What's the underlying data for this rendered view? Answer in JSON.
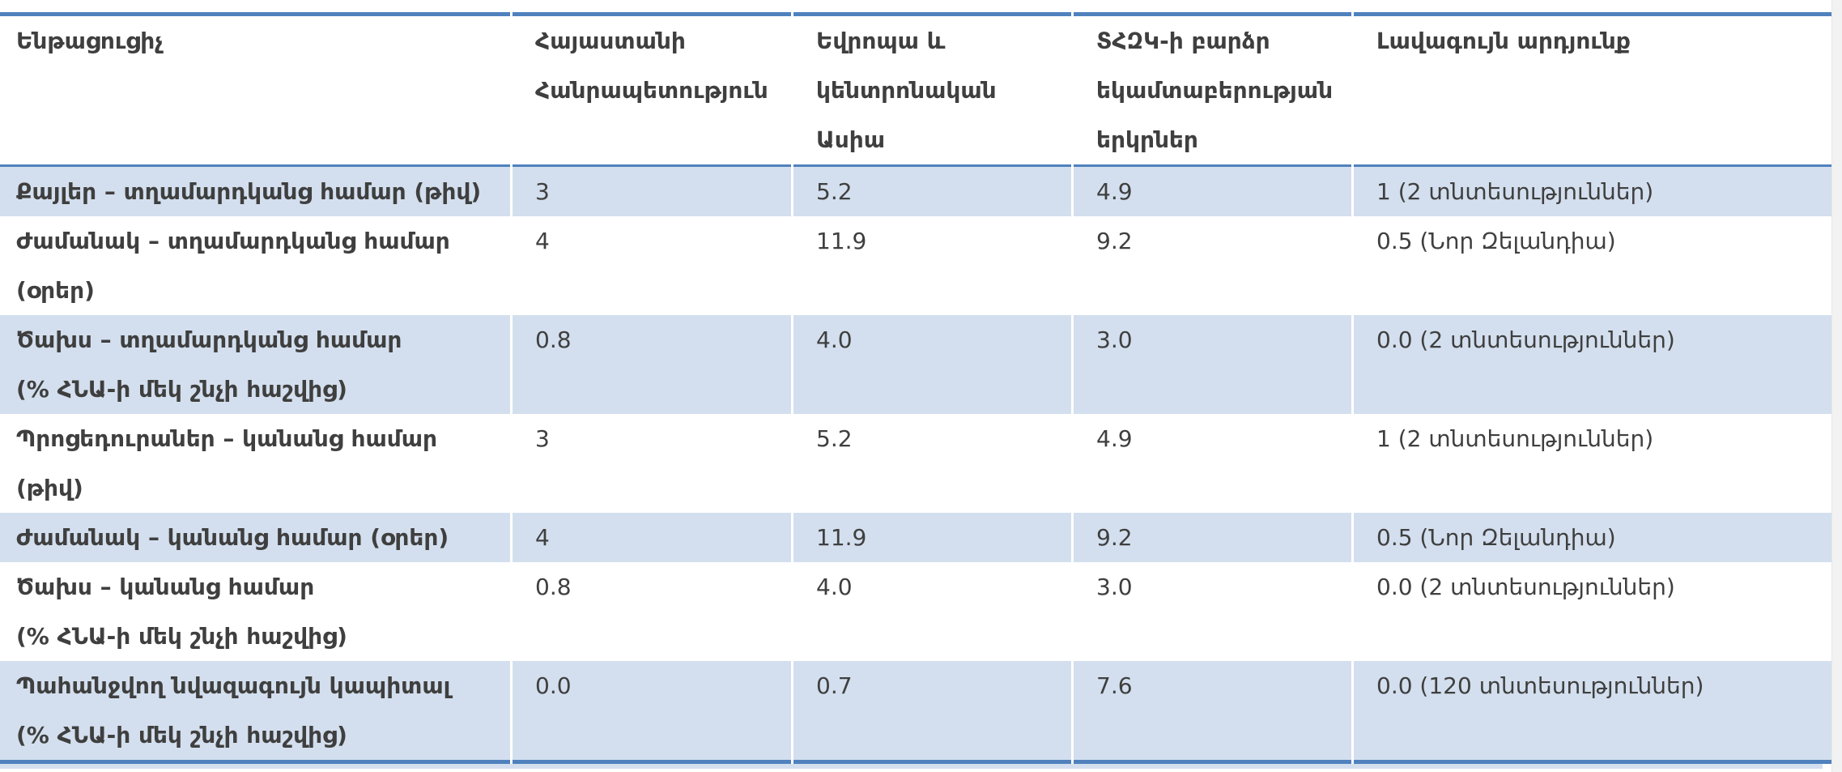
{
  "colors": {
    "band": "#d3dfee",
    "border": "#4f81bd",
    "text": "#3f3f3f"
  },
  "table": {
    "columns": [
      {
        "id": "indicator",
        "lines": [
          "Ենթացուցիչ"
        ]
      },
      {
        "id": "armenia",
        "lines": [
          "Հայաստանի",
          "Հանրապետություն"
        ]
      },
      {
        "id": "europe-central-asia",
        "lines": [
          "Եվրոպա և",
          "կենտրոնական",
          "Ասիա"
        ]
      },
      {
        "id": "oecd-high-income",
        "lines": [
          "ՏՀԶԿ-ի բարձր",
          "եկամտաբերության",
          "երկրներ"
        ]
      },
      {
        "id": "best-result",
        "lines": [
          "Լավագույն արդյունք"
        ]
      }
    ],
    "rows": [
      {
        "label_lines": [
          "Քայլեր – տղամարդկանց համար (թիվ)"
        ],
        "values": [
          "3",
          "5.2",
          "4.9",
          "1 (2 տնտեսություններ)"
        ]
      },
      {
        "label_lines": [
          "Ժամանակ – տղամարդկանց համար",
          "(օրեր)"
        ],
        "values": [
          "4",
          "11.9",
          "9.2",
          "0.5 (Նոր Զելանդիա)"
        ]
      },
      {
        "label_lines": [
          "Ծախս – տղամարդկանց համար",
          "(% ՀՆԱ-ի մեկ շնչի հաշվից)"
        ],
        "values": [
          "0.8",
          "4.0",
          "3.0",
          "0.0 (2 տնտեսություններ)"
        ]
      },
      {
        "label_lines": [
          "Պրոցեդուրաներ – կանանց համար",
          "(թիվ)"
        ],
        "values": [
          "3",
          "5.2",
          "4.9",
          "1 (2 տնտեսություններ)"
        ]
      },
      {
        "label_lines": [
          "Ժամանակ – կանանց համար (օրեր)"
        ],
        "values": [
          "4",
          "11.9",
          "9.2",
          "0.5 (Նոր Զելանդիա)"
        ]
      },
      {
        "label_lines": [
          "Ծախս – կանանց համար",
          "(% ՀՆԱ-ի մեկ շնչի հաշվից)"
        ],
        "values": [
          "0.8",
          "4.0",
          "3.0",
          "0.0 (2 տնտեսություններ)"
        ]
      },
      {
        "label_lines": [
          "Պահանջվող նվազագույն կապիտալ",
          "(% ՀՆԱ-ի մեկ շնչի հաշվից)"
        ],
        "values": [
          "0.0",
          "0.7",
          "7.6",
          "0.0 (120 տնտեսություններ)"
        ]
      }
    ]
  }
}
